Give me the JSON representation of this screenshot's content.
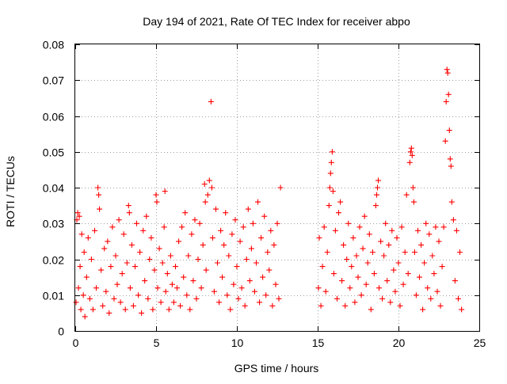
{
  "chart_data": {
    "type": "scatter",
    "title": "Day 194 of 2021, Rate Of TEC Index for receiver abpo",
    "xlabel": "GPS time / hours",
    "ylabel": "ROTI / TECUs",
    "xlim": [
      0,
      25
    ],
    "ylim": [
      0,
      0.08
    ],
    "x_ticks": [
      0,
      5,
      10,
      15,
      20,
      25
    ],
    "y_ticks": [
      0,
      0.01,
      0.02,
      0.03,
      0.04,
      0.05,
      0.06,
      0.07,
      0.08
    ],
    "x_tick_labels": [
      "0",
      "5",
      "10",
      "15",
      "20",
      "25"
    ],
    "y_tick_labels": [
      "0",
      "0.01",
      "0.02",
      "0.03",
      "0.04",
      "0.05",
      "0.06",
      "0.07",
      "0.08"
    ],
    "grid": true,
    "marker": "plus",
    "color": "#ff0000",
    "data_gap_hours": [
      12.75,
      15.0
    ],
    "series": [
      {
        "points": [
          [
            0.05,
            0.008
          ],
          [
            0.1,
            0.031
          ],
          [
            0.15,
            0.033
          ],
          [
            0.2,
            0.012
          ],
          [
            0.25,
            0.032
          ],
          [
            0.3,
            0.018
          ],
          [
            0.35,
            0.006
          ],
          [
            0.4,
            0.027
          ],
          [
            0.5,
            0.01
          ],
          [
            0.55,
            0.022
          ],
          [
            0.6,
            0.004
          ],
          [
            0.7,
            0.015
          ],
          [
            0.8,
            0.026
          ],
          [
            0.9,
            0.009
          ],
          [
            1.0,
            0.02
          ],
          [
            1.1,
            0.006
          ],
          [
            1.2,
            0.028
          ],
          [
            1.3,
            0.012
          ],
          [
            1.4,
            0.04
          ],
          [
            1.45,
            0.038
          ],
          [
            1.5,
            0.034
          ],
          [
            1.6,
            0.017
          ],
          [
            1.7,
            0.007
          ],
          [
            1.8,
            0.023
          ],
          [
            1.9,
            0.011
          ],
          [
            2.0,
            0.025
          ],
          [
            2.1,
            0.005
          ],
          [
            2.2,
            0.018
          ],
          [
            2.3,
            0.029
          ],
          [
            2.4,
            0.009
          ],
          [
            2.5,
            0.021
          ],
          [
            2.6,
            0.013
          ],
          [
            2.7,
            0.031
          ],
          [
            2.8,
            0.008
          ],
          [
            2.9,
            0.016
          ],
          [
            3.0,
            0.027
          ],
          [
            3.1,
            0.006
          ],
          [
            3.2,
            0.019
          ],
          [
            3.3,
            0.035
          ],
          [
            3.35,
            0.033
          ],
          [
            3.4,
            0.012
          ],
          [
            3.5,
            0.024
          ],
          [
            3.6,
            0.007
          ],
          [
            3.7,
            0.018
          ],
          [
            3.8,
            0.03
          ],
          [
            3.9,
            0.01
          ],
          [
            4.0,
            0.022
          ],
          [
            4.1,
            0.005
          ],
          [
            4.2,
            0.028
          ],
          [
            4.3,
            0.014
          ],
          [
            4.4,
            0.032
          ],
          [
            4.5,
            0.009
          ],
          [
            4.6,
            0.02
          ],
          [
            4.7,
            0.026
          ],
          [
            4.8,
            0.006
          ],
          [
            4.9,
            0.017
          ],
          [
            5.0,
            0.038
          ],
          [
            5.05,
            0.036
          ],
          [
            5.1,
            0.012
          ],
          [
            5.2,
            0.023
          ],
          [
            5.3,
            0.008
          ],
          [
            5.4,
            0.019
          ],
          [
            5.5,
            0.029
          ],
          [
            5.55,
            0.039
          ],
          [
            5.6,
            0.011
          ],
          [
            5.7,
            0.016
          ],
          [
            5.8,
            0.006
          ],
          [
            5.9,
            0.021
          ],
          [
            6.0,
            0.013
          ],
          [
            6.1,
            0.008
          ],
          [
            6.2,
            0.018
          ],
          [
            6.3,
            0.012
          ],
          [
            6.4,
            0.025
          ],
          [
            6.5,
            0.007
          ],
          [
            6.6,
            0.029
          ],
          [
            6.7,
            0.015
          ],
          [
            6.8,
            0.033
          ],
          [
            6.9,
            0.01
          ],
          [
            7.0,
            0.021
          ],
          [
            7.1,
            0.006
          ],
          [
            7.2,
            0.027
          ],
          [
            7.3,
            0.014
          ],
          [
            7.4,
            0.031
          ],
          [
            7.5,
            0.009
          ],
          [
            7.6,
            0.02
          ],
          [
            7.7,
            0.03
          ],
          [
            7.8,
            0.012
          ],
          [
            7.9,
            0.024
          ],
          [
            8.0,
            0.041
          ],
          [
            8.05,
            0.036
          ],
          [
            8.1,
            0.017
          ],
          [
            8.2,
            0.038
          ],
          [
            8.3,
            0.042
          ],
          [
            8.4,
            0.064
          ],
          [
            8.45,
            0.04
          ],
          [
            8.5,
            0.026
          ],
          [
            8.6,
            0.011
          ],
          [
            8.7,
            0.034
          ],
          [
            8.8,
            0.019
          ],
          [
            8.9,
            0.008
          ],
          [
            9.0,
            0.028
          ],
          [
            9.1,
            0.015
          ],
          [
            9.2,
            0.024
          ],
          [
            9.3,
            0.033
          ],
          [
            9.4,
            0.01
          ],
          [
            9.5,
            0.021
          ],
          [
            9.6,
            0.006
          ],
          [
            9.7,
            0.027
          ],
          [
            9.8,
            0.013
          ],
          [
            9.9,
            0.031
          ],
          [
            10.0,
            0.018
          ],
          [
            10.1,
            0.009
          ],
          [
            10.2,
            0.025
          ],
          [
            10.3,
            0.012
          ],
          [
            10.4,
            0.029
          ],
          [
            10.5,
            0.007
          ],
          [
            10.6,
            0.02
          ],
          [
            10.7,
            0.034
          ],
          [
            10.8,
            0.014
          ],
          [
            10.9,
            0.023
          ],
          [
            11.0,
            0.03
          ],
          [
            11.1,
            0.011
          ],
          [
            11.2,
            0.019
          ],
          [
            11.3,
            0.036
          ],
          [
            11.4,
            0.008
          ],
          [
            11.5,
            0.026
          ],
          [
            11.6,
            0.015
          ],
          [
            11.7,
            0.032
          ],
          [
            11.8,
            0.01
          ],
          [
            11.9,
            0.022
          ],
          [
            12.0,
            0.017
          ],
          [
            12.1,
            0.028
          ],
          [
            12.2,
            0.007
          ],
          [
            12.3,
            0.024
          ],
          [
            12.4,
            0.013
          ],
          [
            12.5,
            0.03
          ],
          [
            12.6,
            0.009
          ],
          [
            12.7,
            0.04
          ],
          [
            15.05,
            0.012
          ],
          [
            15.1,
            0.026
          ],
          [
            15.2,
            0.007
          ],
          [
            15.3,
            0.018
          ],
          [
            15.4,
            0.029
          ],
          [
            15.5,
            0.011
          ],
          [
            15.6,
            0.022
          ],
          [
            15.7,
            0.035
          ],
          [
            15.75,
            0.04
          ],
          [
            15.8,
            0.044
          ],
          [
            15.85,
            0.047
          ],
          [
            15.9,
            0.05
          ],
          [
            15.95,
            0.039
          ],
          [
            16.0,
            0.016
          ],
          [
            16.1,
            0.028
          ],
          [
            16.2,
            0.009
          ],
          [
            16.3,
            0.033
          ],
          [
            16.4,
            0.036
          ],
          [
            16.5,
            0.014
          ],
          [
            16.6,
            0.024
          ],
          [
            16.7,
            0.007
          ],
          [
            16.8,
            0.02
          ],
          [
            16.9,
            0.03
          ],
          [
            17.0,
            0.012
          ],
          [
            17.1,
            0.018
          ],
          [
            17.2,
            0.026
          ],
          [
            17.3,
            0.008
          ],
          [
            17.4,
            0.021
          ],
          [
            17.5,
            0.015
          ],
          [
            17.6,
            0.029
          ],
          [
            17.7,
            0.01
          ],
          [
            17.8,
            0.023
          ],
          [
            17.9,
            0.032
          ],
          [
            18.0,
            0.013
          ],
          [
            18.1,
            0.019
          ],
          [
            18.2,
            0.027
          ],
          [
            18.3,
            0.006
          ],
          [
            18.4,
            0.022
          ],
          [
            18.5,
            0.016
          ],
          [
            18.6,
            0.035
          ],
          [
            18.65,
            0.038
          ],
          [
            18.7,
            0.04
          ],
          [
            18.75,
            0.042
          ],
          [
            18.8,
            0.012
          ],
          [
            18.9,
            0.025
          ],
          [
            19.0,
            0.009
          ],
          [
            19.1,
            0.021
          ],
          [
            19.2,
            0.03
          ],
          [
            19.3,
            0.014
          ],
          [
            19.4,
            0.024
          ],
          [
            19.5,
            0.008
          ],
          [
            19.6,
            0.028
          ],
          [
            19.7,
            0.017
          ],
          [
            19.8,
            0.011
          ],
          [
            19.9,
            0.026
          ],
          [
            20.0,
            0.019
          ],
          [
            20.1,
            0.007
          ],
          [
            20.2,
            0.029
          ],
          [
            20.3,
            0.013
          ],
          [
            20.4,
            0.022
          ],
          [
            20.5,
            0.038
          ],
          [
            20.6,
            0.016
          ],
          [
            20.7,
            0.047
          ],
          [
            20.75,
            0.05
          ],
          [
            20.8,
            0.051
          ],
          [
            20.85,
            0.049
          ],
          [
            20.9,
            0.04
          ],
          [
            20.95,
            0.036
          ],
          [
            21.0,
            0.022
          ],
          [
            21.1,
            0.01
          ],
          [
            21.2,
            0.028
          ],
          [
            21.3,
            0.015
          ],
          [
            21.4,
            0.024
          ],
          [
            21.5,
            0.006
          ],
          [
            21.6,
            0.019
          ],
          [
            21.7,
            0.03
          ],
          [
            21.8,
            0.012
          ],
          [
            21.9,
            0.027
          ],
          [
            22.0,
            0.009
          ],
          [
            22.1,
            0.021
          ],
          [
            22.2,
            0.016
          ],
          [
            22.3,
            0.029
          ],
          [
            22.4,
            0.011
          ],
          [
            22.5,
            0.025
          ],
          [
            22.6,
            0.007
          ],
          [
            22.7,
            0.018
          ],
          [
            22.8,
            0.029
          ],
          [
            22.9,
            0.053
          ],
          [
            22.95,
            0.064
          ],
          [
            23.0,
            0.073
          ],
          [
            23.05,
            0.072
          ],
          [
            23.1,
            0.066
          ],
          [
            23.15,
            0.056
          ],
          [
            23.2,
            0.048
          ],
          [
            23.25,
            0.046
          ],
          [
            23.3,
            0.036
          ],
          [
            23.4,
            0.031
          ],
          [
            23.5,
            0.014
          ],
          [
            23.6,
            0.028
          ],
          [
            23.7,
            0.009
          ],
          [
            23.8,
            0.022
          ],
          [
            23.9,
            0.006
          ]
        ]
      }
    ]
  }
}
